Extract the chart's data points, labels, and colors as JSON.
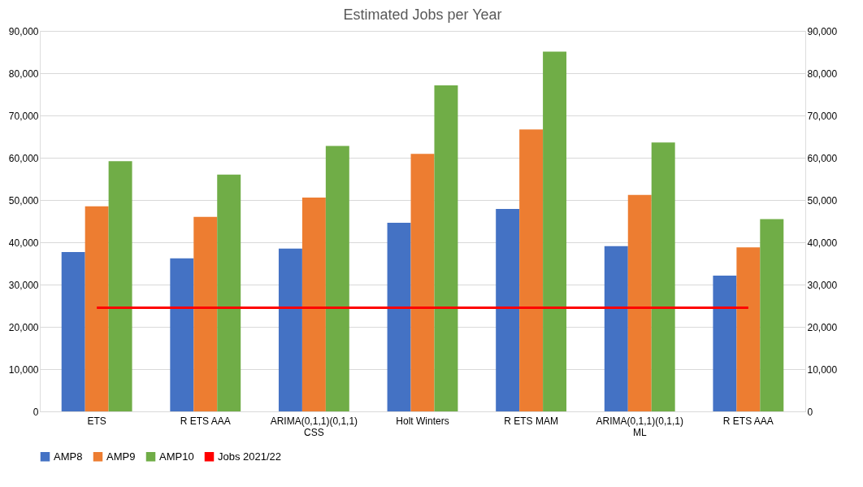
{
  "chart_data": {
    "type": "bar",
    "title": "Estimated Jobs per Year",
    "categories": [
      "ETS",
      "R ETS AAA",
      "ARIMA(0,1,1)(0,1,1) CSS",
      "Holt Winters",
      "R ETS MAM",
      "ARIMA(0,1,1)(0,1,1) ML",
      "R ETS AAA"
    ],
    "series": [
      {
        "name": "AMP8",
        "color": "#4472c4",
        "values": [
          37700,
          36200,
          38500,
          44600,
          47900,
          39100,
          32100
        ]
      },
      {
        "name": "AMP9",
        "color": "#ed7d31",
        "values": [
          48500,
          46000,
          50600,
          60900,
          66700,
          51200,
          38800
        ]
      },
      {
        "name": "AMP10",
        "color": "#70ad47",
        "values": [
          59200,
          56000,
          62800,
          77100,
          85100,
          63600,
          45500
        ]
      },
      {
        "name": "Jobs 2021/22",
        "color": "#ff0000",
        "type": "line",
        "axis": "y2",
        "values": [
          24500,
          24500,
          24500,
          24500,
          24500,
          24500,
          24500
        ]
      }
    ],
    "ylim": [
      0,
      90000
    ],
    "yticks": [
      {
        "value": 0,
        "label": "0"
      },
      {
        "value": 10000,
        "label": "10,000"
      },
      {
        "value": 20000,
        "label": "20,000"
      },
      {
        "value": 30000,
        "label": "30,000"
      },
      {
        "value": 40000,
        "label": "40,000"
      },
      {
        "value": 50000,
        "label": "50,000"
      },
      {
        "value": 60000,
        "label": "60,000"
      },
      {
        "value": 70000,
        "label": "70,000"
      },
      {
        "value": 80000,
        "label": "80,000"
      },
      {
        "value": 90000,
        "label": "90,000"
      }
    ],
    "y2lim": [
      0,
      90000
    ],
    "y2ticks": [
      {
        "value": 0,
        "label": "0"
      },
      {
        "value": 10000,
        "label": "10,000"
      },
      {
        "value": 20000,
        "label": "20,000"
      },
      {
        "value": 30000,
        "label": "30,000"
      },
      {
        "value": 40000,
        "label": "40,000"
      },
      {
        "value": 50000,
        "label": "50,000"
      },
      {
        "value": 60000,
        "label": "60,000"
      },
      {
        "value": 70000,
        "label": "70,000"
      },
      {
        "value": 80000,
        "label": "80,000"
      },
      {
        "value": 90000,
        "label": "90,000"
      }
    ],
    "grid": "y",
    "legend": "bottom"
  }
}
